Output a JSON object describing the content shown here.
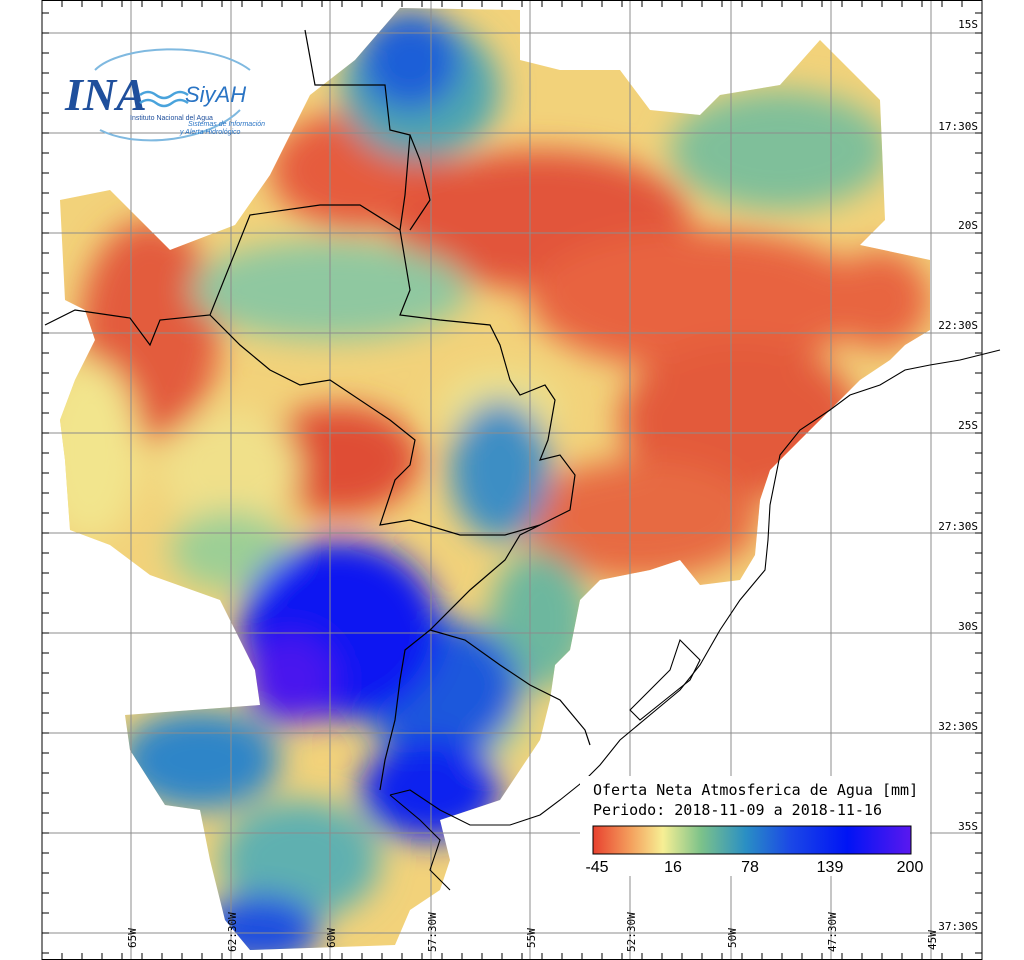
{
  "logo": {
    "ina": "INA",
    "siyah": "SiyAH",
    "line1": "Instituto Nacional del Agua",
    "line2": "Sistemas de Información",
    "line3": "y Alerta Hidrológico"
  },
  "legend": {
    "title": "Oferta Neta Atmosferica de Agua [mm]",
    "period": "Periodo: 2018-11-09 a 2018-11-16",
    "ticks": [
      "-45",
      "16",
      "78",
      "139",
      "200"
    ],
    "colors": [
      "#e8412f",
      "#f4a15e",
      "#f7ef94",
      "#7cc28a",
      "#2a8fc4",
      "#1b48e6",
      "#0014f5",
      "#5a18ef"
    ]
  },
  "lat_labels": [
    "15S",
    "17:30S",
    "20S",
    "22:30S",
    "25S",
    "27:30S",
    "30S",
    "32:30S",
    "35S",
    "37:30S"
  ],
  "lon_labels": [
    "65W",
    "62:30W",
    "60W",
    "57:30W",
    "55W",
    "52:30W",
    "50W",
    "47:30W",
    "45W"
  ],
  "colors": {
    "dry": "#e5553a",
    "neutral": "#f3e690",
    "wet": "#3a8ec2",
    "very_wet": "#0b1af2"
  }
}
